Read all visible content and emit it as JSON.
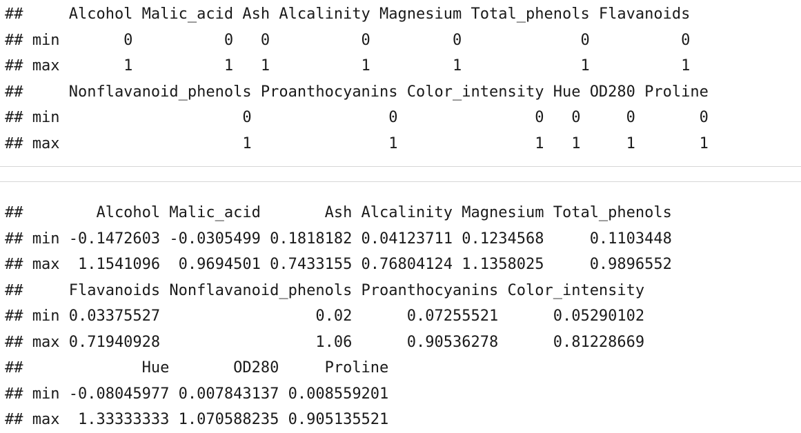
{
  "output_block_1": {
    "lines": [
      "##     Alcohol Malic_acid Ash Alcalinity Magnesium Total_phenols Flavanoids",
      "## min       0          0   0          0         0             0          0",
      "## max       1          1   1          1         1             1          1",
      "##     Nonflavanoid_phenols Proanthocyanins Color_intensity Hue OD280 Proline",
      "## min                    0               0               0   0     0       0",
      "## max                    1               1               1   1     1       1"
    ]
  },
  "output_block_2": {
    "lines": [
      "##        Alcohol Malic_acid       Ash Alcalinity Magnesium Total_phenols",
      "## min -0.1472603 -0.0305499 0.1818182 0.04123711 0.1234568     0.1103448",
      "## max  1.1541096  0.9694501 0.7433155 0.76804124 1.1358025     0.9896552",
      "##     Flavanoids Nonflavanoid_phenols Proanthocyanins Color_intensity",
      "## min 0.03375527                 0.02      0.07255521      0.05290102",
      "## max 0.71940928                 1.06      0.90536278      0.81228669",
      "##             Hue       OD280     Proline",
      "## min -0.08045977 0.007843137 0.008559201",
      "## max  1.33333333 1.070588235 0.905135521"
    ]
  }
}
